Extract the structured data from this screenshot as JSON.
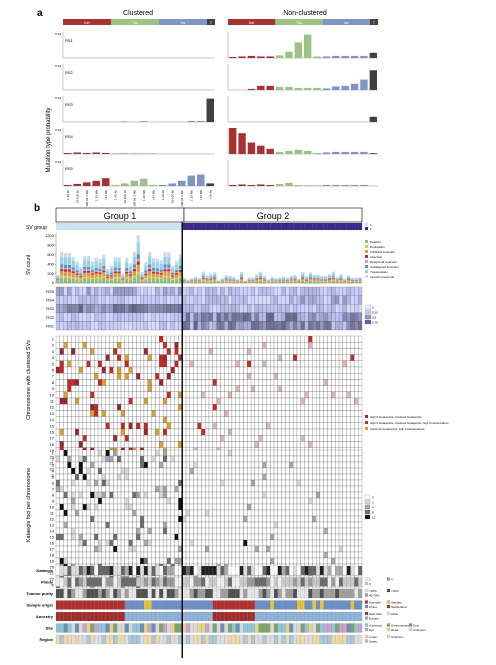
{
  "panel_a": {
    "label": "a",
    "left_title": "Clustered",
    "right_title": "Non-clustered",
    "ylabel": "Mutation type probability",
    "ytick_top": "0.50",
    "class_colors": {
      "Del": "#a83232",
      "Tds": "#9dc384",
      "Inv": "#7f95c8",
      "T": "#404040"
    },
    "class_labels": [
      "Del",
      "Tds",
      "Inv",
      "T"
    ],
    "signatures": [
      "RS1",
      "RS2",
      "RS3",
      "RS4",
      "RS5"
    ],
    "bins": [
      "1-10 kb",
      "10-100 kb",
      "100 kb-1 Mb",
      "1-10 Mb",
      ">10 Mb"
    ]
  },
  "panel_b": {
    "label": "b",
    "group1": "Group 1",
    "group2": "Group 2",
    "sv_group_label": "SV group",
    "sv_group_legend": [
      "1",
      "2"
    ],
    "sv_count_label": "SV count",
    "sv_count_ticks": [
      "1200",
      "800",
      "600",
      "400",
      "200",
      "0"
    ],
    "sv_type_legend": [
      "Deletion",
      "Duplication",
      "Foldback inversion",
      "Inversion",
      "Reciprocal inversion",
      "Unbalanced inversion",
      "Translocation",
      "Interchromosomal"
    ],
    "sig_rows": [
      "RS5",
      "RS4",
      "RS3",
      "RS2",
      "RS1"
    ],
    "sig_legend": [
      "0",
      "0.25",
      "0.5",
      "0.75"
    ],
    "chrom_label": "Chromosome with clustered SVs",
    "chrom_rows": [
      "1",
      "2",
      "3",
      "4",
      "5",
      "6",
      "7",
      "8",
      "9",
      "10",
      "11",
      "12",
      "13",
      "14",
      "15",
      "16",
      "17",
      "18",
      "19",
      "20",
      "21",
      "22",
      "X"
    ],
    "cluster_legend": [
      "High # breakpoints, clustered breakpoints",
      "High # breakpoints, clustered breakpoints, high # translocations",
      "Clustered breakpoints, high # translocations"
    ],
    "kat_label": "Kataegis foci per chromosome",
    "kat_rows": [
      "1",
      "2",
      "3",
      "4",
      "5",
      "6",
      "7",
      "8",
      "9",
      "10",
      "11",
      "12",
      "13",
      "14",
      "15",
      "16",
      "17",
      "18",
      "19",
      "20",
      "21",
      "22",
      "X"
    ],
    "kat_legend": [
      "0",
      "2",
      "4",
      "8",
      "12"
    ],
    "annot_rows": [
      "Kataegis",
      "Ploidy",
      "Tumour purity",
      "Sample origin",
      "Ancestry",
      "Site",
      "Region"
    ],
    "ploidy_legend": [
      "2",
      "3",
      "4"
    ],
    "purity_legend": [
      "<40%",
      "40-70%",
      ">70%"
    ],
    "origin_legend": [
      "Australia",
      "China",
      "Sweden",
      "Switzerland"
    ],
    "ancestry_legend": [
      "East Asia",
      "Europe",
      "Other"
    ],
    "site_legend": [
      "Anorectal",
      "Eye",
      "Genitourinary",
      "Head",
      "Oral",
      "Unknown"
    ],
    "region_legend": [
      "Lower",
      "Upper",
      "Unknown"
    ]
  },
  "chart_data": [
    {
      "type": "bar",
      "title": "Clustered",
      "ylabel": "Mutation type probability",
      "ylim": [
        0,
        0.5
      ],
      "categories_note": "Del/Tds/Inv x size bins + T",
      "series": [
        {
          "name": "RS1",
          "values": [
            0,
            0,
            0,
            0,
            0,
            0,
            0,
            0,
            0,
            0,
            0,
            0,
            0,
            0,
            0,
            0
          ]
        },
        {
          "name": "RS2",
          "values": [
            0,
            0,
            0,
            0,
            0,
            0,
            0,
            0,
            0,
            0,
            0,
            0,
            0,
            0,
            0,
            0
          ]
        },
        {
          "name": "RS3",
          "values": [
            0,
            0,
            0,
            0,
            0,
            0,
            0.01,
            0,
            0.02,
            0,
            0,
            0,
            0,
            0.02,
            0.02,
            0.45
          ]
        },
        {
          "name": "RS4",
          "values": [
            0.02,
            0.03,
            0.02,
            0.03,
            0.02,
            0.01,
            0.02,
            0.01,
            0.01,
            0.01,
            0,
            0,
            0,
            0,
            0,
            0
          ]
        },
        {
          "name": "RS5",
          "values": [
            0.02,
            0.04,
            0.07,
            0.1,
            0.15,
            0.02,
            0.05,
            0.1,
            0.14,
            0.02,
            0.02,
            0.05,
            0.1,
            0.2,
            0.22,
            0.05
          ]
        }
      ]
    },
    {
      "type": "bar",
      "title": "Non-clustered",
      "ylabel": "Mutation type probability",
      "ylim": [
        0,
        0.5
      ],
      "series": [
        {
          "name": "RS1",
          "values": [
            0.02,
            0.03,
            0.04,
            0.03,
            0.03,
            0.05,
            0.12,
            0.3,
            0.45,
            0.03,
            0.03,
            0.04,
            0.04,
            0.04,
            0.04,
            0.1
          ]
        },
        {
          "name": "RS2",
          "values": [
            0,
            0,
            0.02,
            0.08,
            0.08,
            0.06,
            0.06,
            0.04,
            0.04,
            0.04,
            0.03,
            0.07,
            0.08,
            0.12,
            0.2,
            0.38
          ]
        },
        {
          "name": "RS3",
          "values": [
            0,
            0,
            0,
            0,
            0,
            0,
            0,
            0,
            0,
            0,
            0,
            0,
            0,
            0,
            0,
            0.1
          ]
        },
        {
          "name": "RS4",
          "values": [
            0.5,
            0.4,
            0.22,
            0.16,
            0.1,
            0.04,
            0.06,
            0.08,
            0.06,
            0.02,
            0.03,
            0.04,
            0.04,
            0.04,
            0.04,
            0.01
          ]
        },
        {
          "name": "RS5",
          "values": [
            0.02,
            0.03,
            0.02,
            0.03,
            0.02,
            0.04,
            0.06,
            0.02,
            0.01,
            0.01,
            0.02,
            0.02,
            0.02,
            0.02,
            0.02,
            0
          ]
        }
      ]
    }
  ]
}
